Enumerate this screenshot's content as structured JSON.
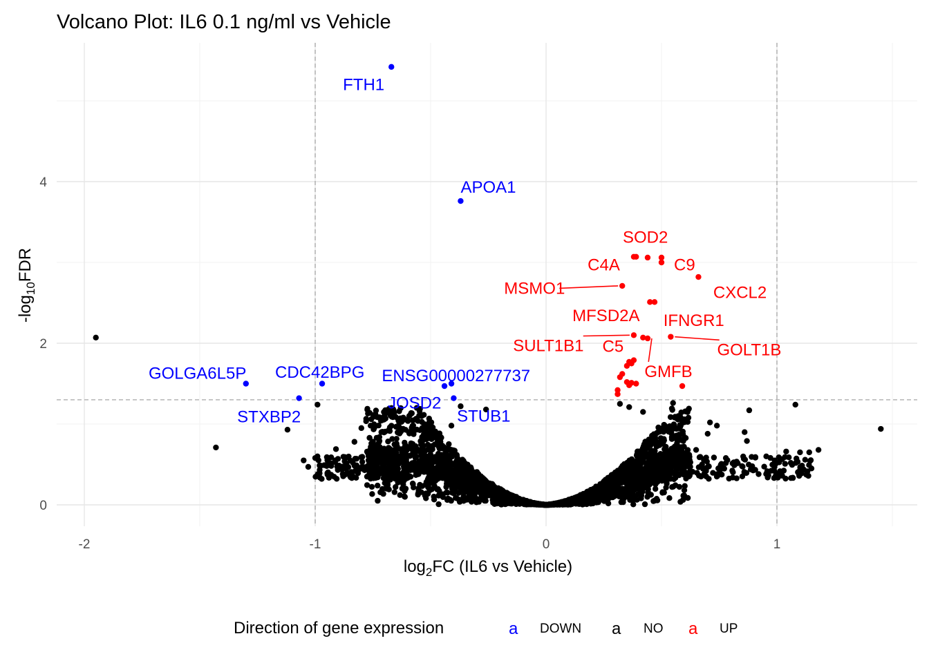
{
  "chart_data": {
    "type": "scatter",
    "title": "Volcano Plot: IL6 0.1 ng/ml vs Vehicle",
    "xlabel_main": "log",
    "xlabel_sub": "2",
    "xlabel_rest": "FC (IL6 vs Vehicle)",
    "ylabel_pre": "-log",
    "ylabel_sub": "10",
    "ylabel_rest": "FDR",
    "xlim": [
      -2.1,
      1.6
    ],
    "ylim": [
      -0.15,
      5.8
    ],
    "x_ticks": [
      -2,
      -1,
      0,
      1
    ],
    "x_tick_labels": [
      "-2",
      "-1",
      "0",
      "1"
    ],
    "y_ticks": [
      0,
      2,
      4
    ],
    "y_tick_labels": [
      "0",
      "2",
      "4"
    ],
    "thresholds": {
      "log2fc": [
        -1,
        1
      ],
      "neg_log10_fdr": 1.3
    },
    "grid": true,
    "legend": {
      "title": "Direction of gene expression",
      "placement": "bottom",
      "key_glyph": "a",
      "entries": [
        {
          "label": "DOWN",
          "color": "#0000ff"
        },
        {
          "label": "NO",
          "color": "#000000"
        },
        {
          "label": "UP",
          "color": "#ff0000"
        }
      ]
    },
    "colors": {
      "DOWN": "#0000ff",
      "NO": "#000000",
      "UP": "#ff0000"
    },
    "down_points": [
      [
        -0.67,
        5.42
      ],
      [
        -0.37,
        3.76
      ],
      [
        -1.3,
        1.5
      ],
      [
        -0.97,
        1.5
      ],
      [
        -1.07,
        1.32
      ],
      [
        -0.41,
        1.5
      ],
      [
        -0.44,
        1.47
      ],
      [
        -0.4,
        1.32
      ]
    ],
    "up_points": [
      [
        0.38,
        3.07
      ],
      [
        0.39,
        3.07
      ],
      [
        0.44,
        3.06
      ],
      [
        0.5,
        3.06
      ],
      [
        0.5,
        3.0
      ],
      [
        0.66,
        2.82
      ],
      [
        0.33,
        2.71
      ],
      [
        0.45,
        2.51
      ],
      [
        0.47,
        2.51
      ],
      [
        0.38,
        2.1
      ],
      [
        0.42,
        2.07
      ],
      [
        0.44,
        2.06
      ],
      [
        0.54,
        2.08
      ],
      [
        0.35,
        1.72
      ],
      [
        0.36,
        1.77
      ],
      [
        0.37,
        1.75
      ],
      [
        0.38,
        1.79
      ],
      [
        0.32,
        1.58
      ],
      [
        0.33,
        1.62
      ],
      [
        0.35,
        1.52
      ],
      [
        0.36,
        1.48
      ],
      [
        0.37,
        1.51
      ],
      [
        0.39,
        1.5
      ],
      [
        0.31,
        1.42
      ],
      [
        0.31,
        1.37
      ],
      [
        0.59,
        1.47
      ]
    ],
    "no_points_explicit": [
      [
        -1.95,
        2.07
      ],
      [
        -1.43,
        0.71
      ],
      [
        -1.12,
        0.93
      ],
      [
        -0.99,
        1.24
      ],
      [
        -0.8,
        0.95
      ],
      [
        -0.76,
        0.98
      ],
      [
        -0.7,
        1.1
      ],
      [
        -0.56,
        1.2
      ],
      [
        -0.37,
        1.22
      ],
      [
        -0.26,
        1.18
      ],
      [
        -1.05,
        0.55
      ],
      [
        -1.0,
        0.58
      ],
      [
        -0.95,
        0.48
      ],
      [
        -1.03,
        0.47
      ],
      [
        -0.91,
        0.69
      ],
      [
        -0.83,
        0.78
      ],
      [
        -0.68,
        0.59
      ],
      [
        -0.53,
        0.87
      ],
      [
        -0.47,
        0.84
      ],
      [
        -0.41,
        0.98
      ],
      [
        0.32,
        1.25
      ],
      [
        0.36,
        1.21
      ],
      [
        0.42,
        1.15
      ],
      [
        0.55,
        1.26
      ],
      [
        0.71,
        1.02
      ],
      [
        0.74,
        0.98
      ],
      [
        0.86,
        0.9
      ],
      [
        0.88,
        1.17
      ],
      [
        1.08,
        1.24
      ],
      [
        1.45,
        0.94
      ],
      [
        0.87,
        0.79
      ],
      [
        1.04,
        0.66
      ],
      [
        1.1,
        0.65
      ],
      [
        1.14,
        0.65
      ],
      [
        1.18,
        0.68
      ],
      [
        0.99,
        0.55
      ],
      [
        1.06,
        0.52
      ],
      [
        0.65,
        0.68
      ],
      [
        0.7,
        0.88
      ],
      [
        0.62,
        0.62
      ]
    ],
    "labels": [
      {
        "text": "FTH1",
        "group": "DOWN",
        "x": -0.67,
        "y": 5.42,
        "lx": -0.79,
        "ly": 5.2
      },
      {
        "text": "APOA1",
        "group": "DOWN",
        "x": -0.37,
        "y": 3.76,
        "lx": -0.25,
        "ly": 3.93
      },
      {
        "text": "GOLGA6L5P",
        "group": "DOWN",
        "x": -1.3,
        "y": 1.5,
        "lx": -1.51,
        "ly": 1.63
      },
      {
        "text": "CDC42BPG",
        "group": "DOWN",
        "x": -0.97,
        "y": 1.5,
        "lx": -0.98,
        "ly": 1.64
      },
      {
        "text": "ENSG00000277737",
        "group": "DOWN",
        "x": -0.41,
        "y": 1.5,
        "lx": -0.39,
        "ly": 1.6
      },
      {
        "text": "STXBP2",
        "group": "DOWN",
        "x": -1.07,
        "y": 1.32,
        "lx": -1.2,
        "ly": 1.09
      },
      {
        "text": "JOSD2",
        "group": "DOWN",
        "x": -0.44,
        "y": 1.47,
        "lx": -0.57,
        "ly": 1.26
      },
      {
        "text": "STUB1",
        "group": "DOWN",
        "x": -0.4,
        "y": 1.32,
        "lx": -0.27,
        "ly": 1.1
      },
      {
        "text": "SOD2",
        "group": "UP",
        "x": 0.38,
        "y": 3.07,
        "lx": 0.43,
        "ly": 3.31
      },
      {
        "text": "C4A",
        "group": "UP",
        "x": 0.39,
        "y": 3.07,
        "lx": 0.25,
        "ly": 2.97
      },
      {
        "text": "C9",
        "group": "UP",
        "x": 0.5,
        "y": 3.06,
        "lx": 0.6,
        "ly": 2.97
      },
      {
        "text": "CXCL2",
        "group": "UP",
        "x": 0.66,
        "y": 2.82,
        "lx": 0.84,
        "ly": 2.63
      },
      {
        "text": "MSMO1",
        "group": "UP",
        "x": 0.33,
        "y": 2.71,
        "lx": -0.05,
        "ly": 2.68,
        "line": true
      },
      {
        "text": "MFSD2A",
        "group": "UP",
        "x": 0.45,
        "y": 2.51,
        "lx": 0.26,
        "ly": 2.34
      },
      {
        "text": "IFNGR1",
        "group": "UP",
        "x": 0.54,
        "y": 2.08,
        "lx": 0.64,
        "ly": 2.28
      },
      {
        "text": "SULT1B1",
        "group": "UP",
        "x": 0.38,
        "y": 2.1,
        "lx": 0.01,
        "ly": 1.97,
        "line": true
      },
      {
        "text": "C5",
        "group": "UP",
        "x": 0.42,
        "y": 2.07,
        "lx": 0.29,
        "ly": 1.96
      },
      {
        "text": "GOLT1B",
        "group": "UP",
        "x": 0.54,
        "y": 2.08,
        "lx": 0.88,
        "ly": 1.92,
        "line": true
      },
      {
        "text": "GMFB",
        "group": "UP",
        "x": 0.44,
        "y": 2.06,
        "lx": 0.53,
        "ly": 1.65,
        "line": true
      }
    ]
  }
}
